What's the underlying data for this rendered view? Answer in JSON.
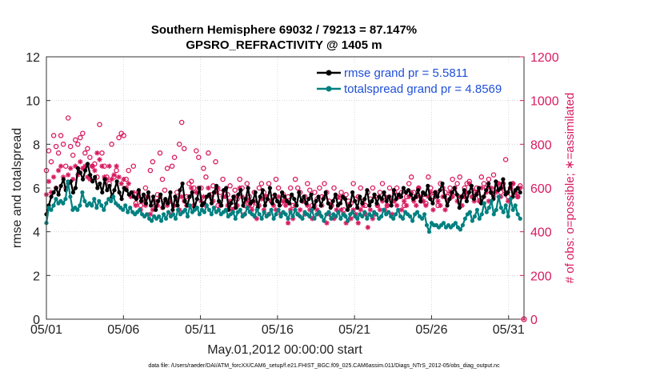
{
  "chart_data": {
    "type": "line",
    "title": "Southern Hemisphere 69032 / 79213 = 87.147%",
    "subtitle": "GPSRO_REFRACTIVITY @ 1405 m",
    "xlabel": "May.01,2012 00:00:00 start",
    "ylabel": "rmse and totalspread",
    "ylabel_right": "# of obs: o=possible; ∗=assimilated",
    "footer": "data file: /Users/raeder/DAI/ATM_forcXX/CAM6_setup/f.e21.FHIST_BGC.f09_025.CAM6assim.011/Diags_NTrS_2012-05/obs_diag_output.nc",
    "x_ticks": [
      {
        "day": 0,
        "label": "05/01"
      },
      {
        "day": 5,
        "label": "05/06"
      },
      {
        "day": 10,
        "label": "05/11"
      },
      {
        "day": 15,
        "label": "05/16"
      },
      {
        "day": 20,
        "label": "05/21"
      },
      {
        "day": 25,
        "label": "05/26"
      },
      {
        "day": 30,
        "label": "05/31"
      }
    ],
    "xlim": [
      0,
      31
    ],
    "ylim": [
      0,
      12
    ],
    "y_ticks": [
      "0",
      "2",
      "4",
      "6",
      "8",
      "10",
      "12"
    ],
    "ylim_right": [
      0,
      1200
    ],
    "y_ticks_right": [
      "0",
      "200",
      "400",
      "600",
      "800",
      "1000",
      "1200"
    ],
    "legend_position": "top-right",
    "colors": {
      "rmse": "#000000",
      "spread": "#008080",
      "obs": "#d81b60",
      "legend_text": "#1f4fd8"
    },
    "series": [
      {
        "name": "rmse grand pr = 5.5811",
        "key": "rmse",
        "axis": "left",
        "marker": "dot",
        "values": [
          4.8,
          5.2,
          5.6,
          5.8,
          6.0,
          5.7,
          6.1,
          6.4,
          5.9,
          6.2,
          6.3,
          5.8,
          6.0,
          6.9,
          6.7,
          6.4,
          6.8,
          7.1,
          6.6,
          6.3,
          6.5,
          6.0,
          6.2,
          5.8,
          6.4,
          5.9,
          6.1,
          5.6,
          5.9,
          6.3,
          5.8,
          5.5,
          6.0,
          5.9,
          5.7,
          5.8,
          5.6,
          5.5,
          5.9,
          5.4,
          5.7,
          5.3,
          5.8,
          5.2,
          5.6,
          5.0,
          5.4,
          5.7,
          5.1,
          5.5,
          5.3,
          5.8,
          5.0,
          5.6,
          5.2,
          5.9,
          6.2,
          5.4,
          5.2,
          5.6,
          5.8,
          5.1,
          5.5,
          6.0,
          5.2,
          5.3,
          5.6,
          5.7,
          5.3,
          5.8,
          6.1,
          5.4,
          5.2,
          5.9,
          6.0,
          5.0,
          5.3,
          5.6,
          5.1,
          5.7,
          5.9,
          5.2,
          5.5,
          6.0,
          5.3,
          5.4,
          5.8,
          5.1,
          5.6,
          5.9,
          5.2,
          5.5,
          6.0,
          5.3,
          5.7,
          5.4,
          5.2,
          5.8,
          5.6,
          5.4,
          5.3,
          5.7,
          5.5,
          5.2,
          5.8,
          5.4,
          5.6,
          5.3,
          5.5,
          5.7,
          5.1,
          5.4,
          5.6,
          5.2,
          5.5,
          5.8,
          5.3,
          5.1,
          5.4,
          5.7,
          5.2,
          5.3,
          5.6,
          5.5,
          5.0,
          5.2,
          5.8,
          5.4,
          5.1,
          5.6,
          5.3,
          5.5,
          5.9,
          5.2,
          5.4,
          5.7,
          5.3,
          5.6,
          5.5,
          5.8,
          5.4,
          5.6,
          5.2,
          5.9,
          5.5,
          5.7,
          5.6,
          6.0,
          5.8,
          5.9,
          5.7,
          5.5,
          5.6,
          5.9,
          5.4,
          5.8,
          5.7,
          6.1,
          5.5,
          5.3,
          5.8,
          5.6,
          5.9,
          6.2,
          5.6,
          5.2,
          5.5,
          5.8,
          6.0,
          5.7,
          5.1,
          5.6,
          5.9,
          5.4,
          5.8,
          6.1,
          5.5,
          5.7,
          6.0,
          5.3,
          5.6,
          5.9,
          6.2,
          5.8,
          5.5,
          6.3,
          5.9,
          6.0,
          6.4,
          5.7,
          5.8,
          6.2,
          5.6,
          5.9,
          6.0,
          5.8
        ]
      },
      {
        "name": "totalspread grand pr = 4.8569",
        "key": "spread",
        "axis": "left",
        "marker": "dot",
        "values": [
          4.4,
          5.1,
          5.0,
          5.2,
          5.5,
          5.3,
          5.4,
          5.3,
          5.5,
          6.3,
          5.6,
          5.0,
          5.1,
          5.0,
          5.2,
          5.8,
          5.4,
          5.2,
          5.3,
          5.2,
          5.5,
          5.1,
          5.4,
          5.2,
          5.0,
          5.3,
          5.5,
          5.4,
          5.6,
          5.3,
          5.2,
          5.1,
          5.0,
          5.2,
          4.9,
          5.1,
          4.9,
          4.8,
          4.9,
          5.0,
          4.8,
          4.7,
          4.8,
          4.6,
          4.5,
          4.7,
          4.6,
          4.7,
          4.5,
          4.8,
          4.6,
          4.9,
          4.7,
          4.8,
          4.6,
          5.0,
          4.8,
          4.9,
          5.0,
          4.7,
          5.2,
          4.9,
          5.0,
          5.1,
          4.8,
          5.0,
          4.9,
          5.2,
          5.0,
          4.8,
          5.1,
          4.9,
          5.0,
          4.8,
          4.9,
          5.0,
          4.7,
          4.8,
          4.9,
          4.6,
          4.9,
          5.0,
          4.7,
          4.8,
          5.1,
          4.9,
          4.8,
          4.7,
          5.0,
          4.8,
          4.6,
          4.9,
          4.7,
          4.8,
          5.0,
          4.6,
          4.8,
          5.0,
          4.7,
          4.9,
          4.8,
          4.6,
          4.9,
          4.7,
          5.0,
          4.8,
          4.7,
          4.6,
          4.9,
          4.8,
          4.7,
          5.0,
          4.6,
          4.8,
          4.9,
          4.7,
          4.5,
          4.8,
          4.9,
          4.6,
          4.8,
          4.7,
          4.9,
          4.6,
          4.8,
          4.7,
          4.5,
          4.8,
          4.9,
          4.7,
          4.6,
          4.8,
          4.7,
          4.9,
          4.6,
          4.8,
          4.7,
          4.9,
          4.8,
          4.6,
          4.7,
          5.0,
          4.8,
          4.9,
          4.7,
          4.6,
          4.8,
          5.0,
          4.7,
          4.6,
          4.9,
          4.8,
          4.7,
          4.5,
          4.8,
          4.9,
          4.7,
          4.6,
          4.8,
          4.3,
          4.0,
          4.4,
          4.3,
          4.3,
          4.2,
          4.3,
          4.4,
          4.2,
          4.3,
          4.2,
          4.3,
          4.4,
          4.2,
          4.1,
          4.3,
          4.6,
          4.8,
          4.9,
          4.5,
          4.7,
          5.0,
          4.6,
          4.8,
          5.3,
          4.9,
          5.1,
          5.4,
          4.8,
          5.0,
          5.6,
          5.1,
          4.9,
          5.2,
          4.7,
          5.5,
          5.0,
          5.2,
          4.8,
          4.6
        ]
      },
      {
        "name": "possible",
        "key": "possible",
        "axis": "right",
        "marker": "circle",
        "values": [
          680,
          770,
          720,
          840,
          790,
          760,
          840,
          800,
          700,
          920,
          790,
          750,
          820,
          800,
          830,
          850,
          760,
          780,
          740,
          700,
          710,
          650,
          890,
          760,
          700,
          650,
          620,
          800,
          650,
          680,
          830,
          850,
          840,
          640,
          680,
          570,
          700,
          530,
          580,
          520,
          550,
          600,
          560,
          680,
          720,
          520,
          570,
          760,
          640,
          590,
          690,
          540,
          700,
          740,
          580,
          800,
          900,
          780,
          560,
          620,
          630,
          600,
          770,
          740,
          600,
          690,
          650,
          760,
          570,
          610,
          720,
          520,
          580,
          640,
          590,
          570,
          610,
          520,
          590,
          550,
          640,
          600,
          520,
          620,
          560,
          520,
          580,
          530,
          600,
          620,
          580,
          560,
          620,
          540,
          560,
          640,
          600,
          530,
          570,
          540,
          560,
          600,
          520,
          640,
          600,
          580,
          540,
          560,
          620,
          590,
          520,
          580,
          550,
          600,
          560,
          620,
          580,
          540,
          520,
          600,
          560,
          540,
          580,
          500,
          570,
          540,
          530,
          620,
          550,
          560,
          600,
          540,
          520,
          580,
          550,
          600,
          560,
          520,
          580,
          620,
          560,
          520,
          600,
          540,
          580,
          600,
          560,
          580,
          520,
          560,
          620,
          650,
          580,
          560,
          600,
          540,
          570,
          530,
          650,
          600,
          560,
          580,
          520,
          620,
          600,
          580,
          560,
          600,
          640,
          580,
          620,
          650,
          560,
          600,
          620,
          630,
          590,
          580,
          600,
          560,
          650,
          620,
          600,
          640,
          580,
          660,
          600,
          620,
          580,
          620,
          730,
          560,
          600,
          620,
          580,
          560,
          610
        ]
      },
      {
        "name": "assimilated",
        "key": "assimilated",
        "axis": "right",
        "marker": "asterisk",
        "values": [
          570,
          630,
          580,
          650,
          600,
          680,
          700,
          650,
          600,
          660,
          690,
          640,
          700,
          660,
          720,
          690,
          700,
          650,
          640,
          700,
          680,
          760,
          730,
          700,
          650,
          640,
          700,
          640,
          660,
          700,
          650,
          620,
          640,
          600,
          620,
          560,
          580,
          520,
          560,
          500,
          540,
          520,
          560,
          480,
          500,
          540,
          520,
          560,
          510,
          540,
          520,
          540,
          480,
          520,
          550,
          500,
          560,
          540,
          520,
          560,
          600,
          520,
          580,
          600,
          540,
          560,
          520,
          600,
          560,
          540,
          580,
          600,
          520,
          560,
          560,
          520,
          540,
          500,
          560,
          520,
          600,
          560,
          480,
          540,
          520,
          500,
          540,
          460,
          520,
          550,
          500,
          560,
          480,
          540,
          520,
          500,
          560,
          480,
          540,
          520,
          440,
          500,
          460,
          520,
          480,
          500,
          540,
          480,
          520,
          500,
          460,
          520,
          500,
          480,
          520,
          560,
          440,
          480,
          520,
          460,
          500,
          560,
          500,
          480,
          440,
          520,
          460,
          500,
          480,
          440,
          500,
          520,
          480,
          420,
          500,
          460,
          480,
          520,
          500,
          540,
          500,
          520,
          560,
          480,
          540,
          520,
          560,
          500,
          540,
          520,
          560,
          580,
          540,
          520,
          600,
          560,
          540,
          520,
          560,
          580,
          500,
          560,
          540,
          520,
          560,
          500,
          540,
          580,
          560,
          600,
          540,
          560,
          520,
          560,
          580,
          620,
          560,
          540,
          580,
          540,
          600,
          560,
          580,
          540,
          600,
          560,
          580,
          620,
          560,
          600,
          580,
          540,
          600,
          620,
          580,
          560,
          600
        ]
      }
    ]
  }
}
